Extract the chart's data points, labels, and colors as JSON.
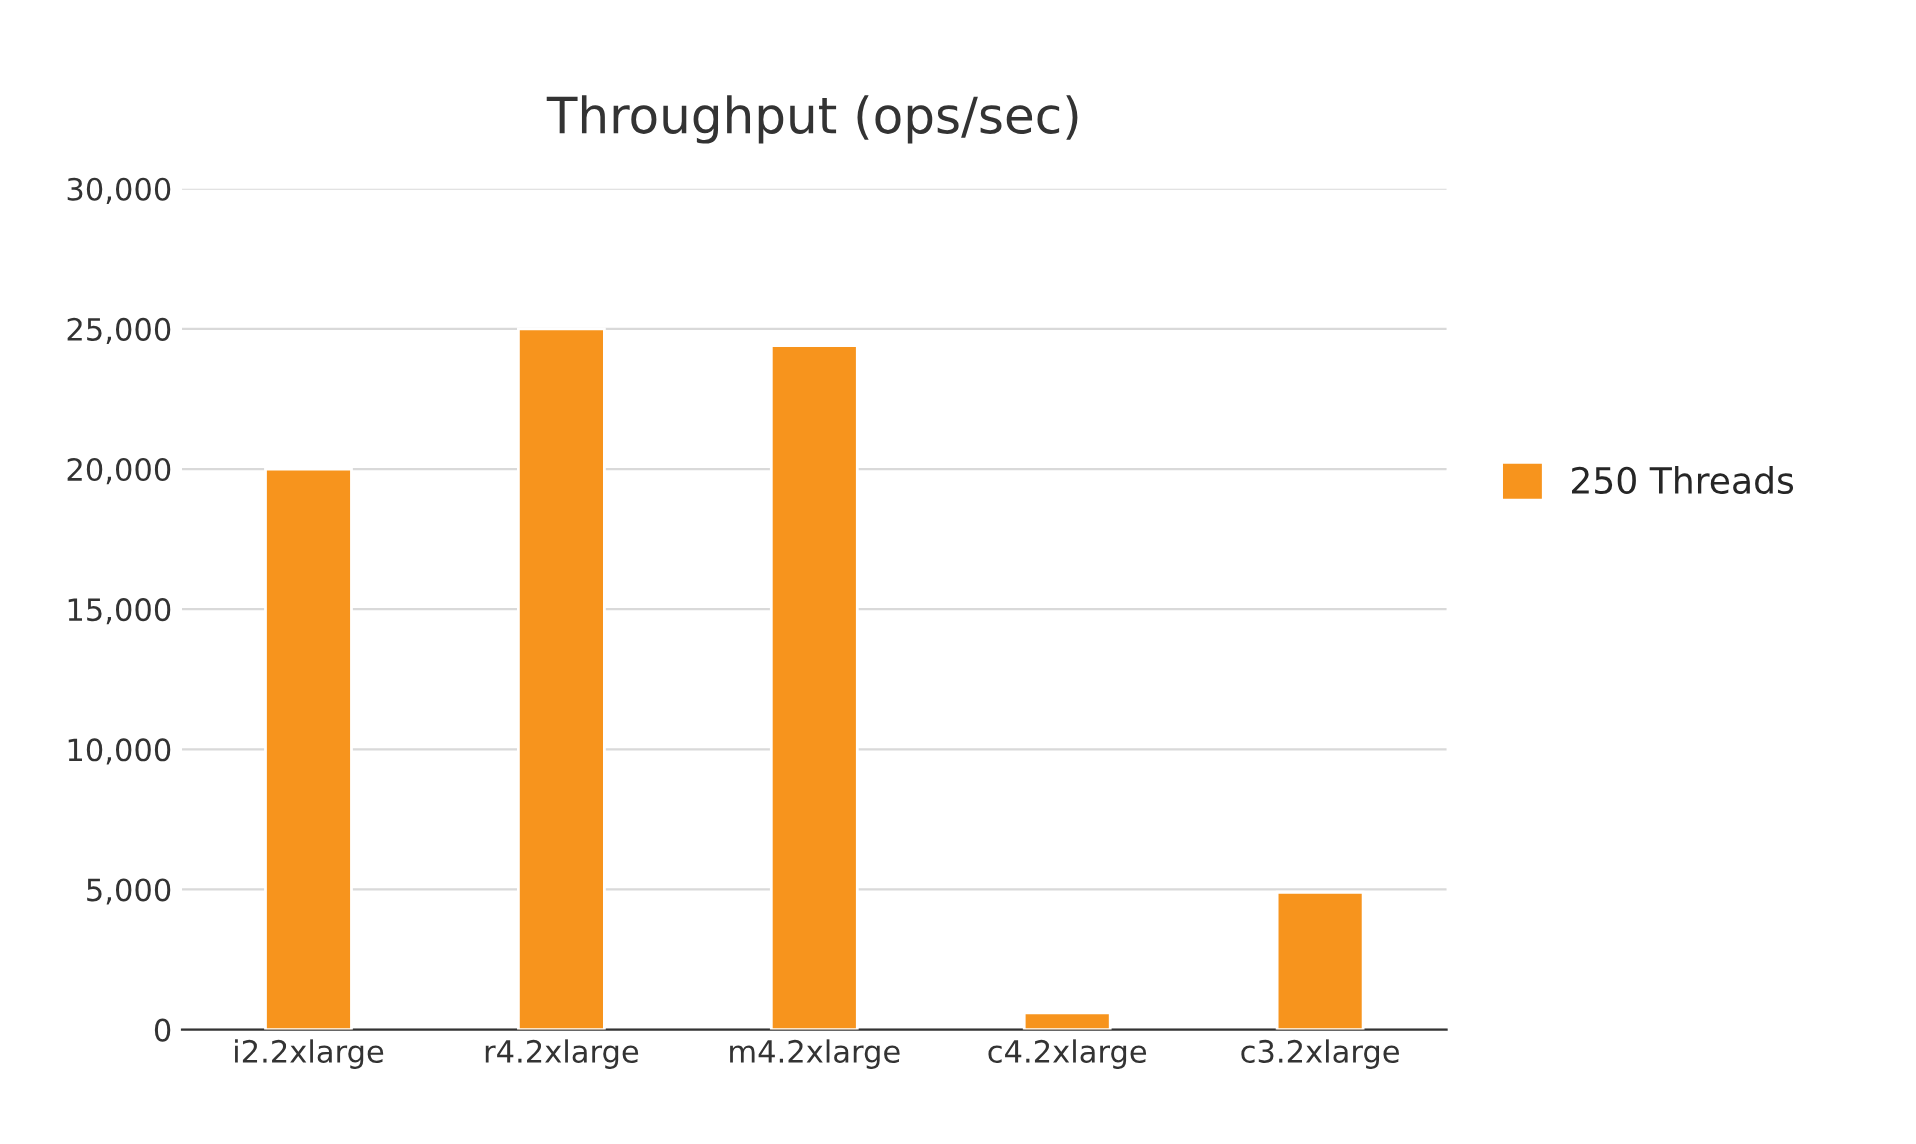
{
  "chart_data": {
    "type": "bar",
    "title": "Throughput (ops/sec)",
    "categories": [
      "i2.2xlarge",
      "r4.2xlarge",
      "m4.2xlarge",
      "c4.2xlarge",
      "c3.2xlarge"
    ],
    "series": [
      {
        "name": "250 Threads",
        "color": "#f7941d",
        "values": [
          20000,
          25000,
          24400,
          600,
          4900
        ]
      }
    ],
    "ylim": [
      0,
      30000
    ],
    "yticks": [
      {
        "value": 0,
        "label": "0"
      },
      {
        "value": 5000,
        "label": "5,000"
      },
      {
        "value": 10000,
        "label": "10,000"
      },
      {
        "value": 15000,
        "label": "15,000"
      },
      {
        "value": 20000,
        "label": "20,000"
      },
      {
        "value": 25000,
        "label": "25,000"
      },
      {
        "value": 30000,
        "label": "30,000"
      }
    ],
    "grid": "y",
    "legend": "right"
  }
}
